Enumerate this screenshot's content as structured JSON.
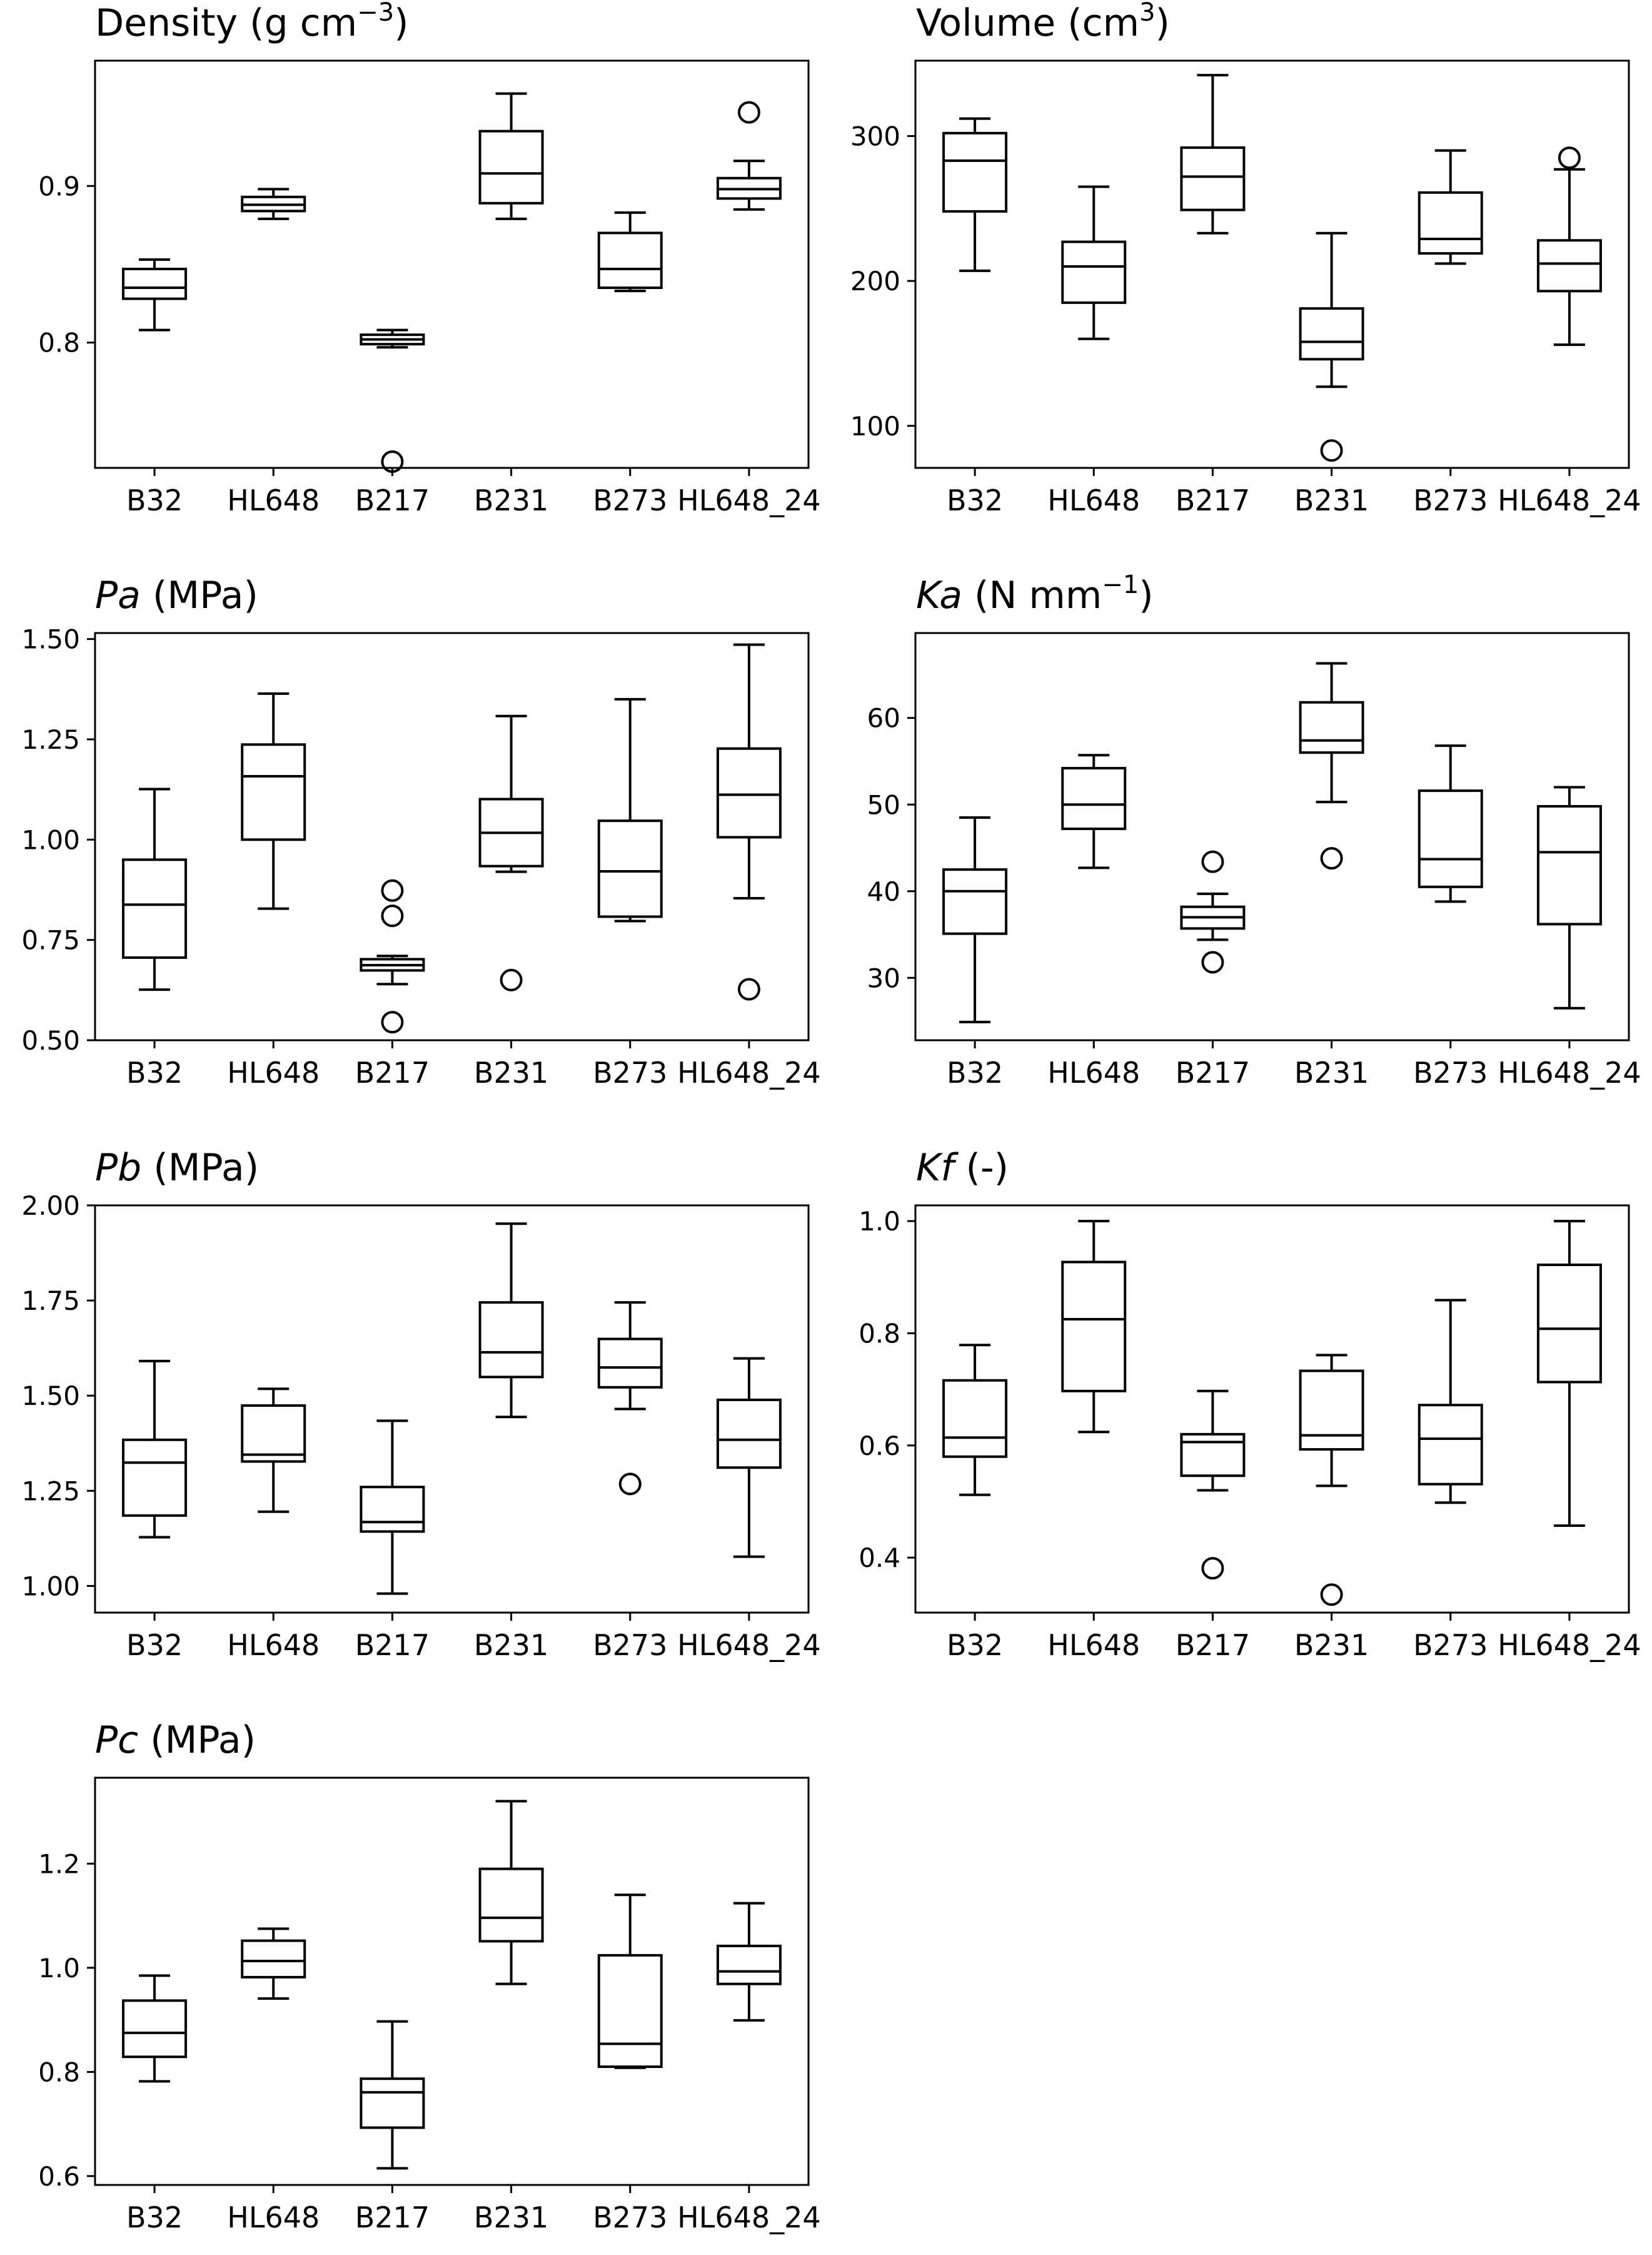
{
  "chart_data": [
    {
      "type": "box",
      "title_text": "Density (g cm",
      "title_unit_exp": "−3",
      "title_suffix": ")",
      "categories": [
        "B32",
        "HL648",
        "B217",
        "B231",
        "B273",
        "HL648_24"
      ],
      "ylim": [
        0.72,
        0.98
      ],
      "yticks": [
        0.8,
        0.9
      ],
      "ytick_labels": [
        "0.8",
        "0.9"
      ],
      "boxes": [
        {
          "whislo": 0.808,
          "q1": 0.828,
          "med": 0.835,
          "q3": 0.847,
          "whishi": 0.853,
          "fliers": []
        },
        {
          "whislo": 0.879,
          "q1": 0.884,
          "med": 0.888,
          "q3": 0.893,
          "whishi": 0.898,
          "fliers": []
        },
        {
          "whislo": 0.797,
          "q1": 0.799,
          "med": 0.802,
          "q3": 0.805,
          "whishi": 0.808,
          "fliers": [
            0.724
          ]
        },
        {
          "whislo": 0.879,
          "q1": 0.889,
          "med": 0.908,
          "q3": 0.935,
          "whishi": 0.959,
          "fliers": []
        },
        {
          "whislo": 0.833,
          "q1": 0.835,
          "med": 0.847,
          "q3": 0.87,
          "whishi": 0.883,
          "fliers": []
        },
        {
          "whislo": 0.885,
          "q1": 0.892,
          "med": 0.898,
          "q3": 0.905,
          "whishi": 0.916,
          "fliers": [
            0.947
          ]
        }
      ]
    },
    {
      "type": "box",
      "title_text": "Volume (cm",
      "title_unit_exp": "3",
      "title_suffix": ")",
      "categories": [
        "B32",
        "HL648",
        "B217",
        "B231",
        "B273",
        "HL648_24"
      ],
      "ylim": [
        71,
        352
      ],
      "yticks": [
        100,
        200,
        300
      ],
      "ytick_labels": [
        "100",
        "200",
        "300"
      ],
      "boxes": [
        {
          "whislo": 207,
          "q1": 248,
          "med": 283,
          "q3": 302,
          "whishi": 312,
          "fliers": []
        },
        {
          "whislo": 160,
          "q1": 185,
          "med": 210,
          "q3": 227,
          "whishi": 265,
          "fliers": []
        },
        {
          "whislo": 233,
          "q1": 249,
          "med": 272,
          "q3": 292,
          "whishi": 342,
          "fliers": []
        },
        {
          "whislo": 127,
          "q1": 146,
          "med": 158,
          "q3": 181,
          "whishi": 233,
          "fliers": [
            83
          ]
        },
        {
          "whislo": 212,
          "q1": 219,
          "med": 229,
          "q3": 261,
          "whishi": 290,
          "fliers": []
        },
        {
          "whislo": 156,
          "q1": 193,
          "med": 212,
          "q3": 228,
          "whishi": 277,
          "fliers": [
            285
          ]
        }
      ]
    },
    {
      "type": "box",
      "title_italic": "Pa",
      "title_text": " (MPa)",
      "categories": [
        "B32",
        "HL648",
        "B217",
        "B231",
        "B273",
        "HL648_24"
      ],
      "ylim": [
        0.5,
        1.515
      ],
      "yticks": [
        0.5,
        0.75,
        1.0,
        1.25,
        1.5
      ],
      "ytick_labels": [
        "0.50",
        "0.75",
        "1.00",
        "1.25",
        "1.50"
      ],
      "boxes": [
        {
          "whislo": 0.626,
          "q1": 0.706,
          "med": 0.838,
          "q3": 0.95,
          "whishi": 1.126,
          "fliers": []
        },
        {
          "whislo": 0.828,
          "q1": 1.0,
          "med": 1.158,
          "q3": 1.237,
          "whishi": 1.364,
          "fliers": []
        },
        {
          "whislo": 0.64,
          "q1": 0.674,
          "med": 0.687,
          "q3": 0.702,
          "whishi": 0.71,
          "fliers": [
            0.873,
            0.81,
            0.545
          ]
        },
        {
          "whislo": 0.92,
          "q1": 0.934,
          "med": 1.017,
          "q3": 1.101,
          "whishi": 1.308,
          "fliers": [
            0.65
          ]
        },
        {
          "whislo": 0.797,
          "q1": 0.808,
          "med": 0.921,
          "q3": 1.047,
          "whishi": 1.35,
          "fliers": []
        },
        {
          "whislo": 0.854,
          "q1": 1.006,
          "med": 1.112,
          "q3": 1.227,
          "whishi": 1.486,
          "fliers": [
            0.627
          ]
        }
      ]
    },
    {
      "type": "box",
      "title_italic": "Ka",
      "title_text": " (N mm",
      "title_unit_exp": "−1",
      "title_suffix": ")",
      "categories": [
        "B32",
        "HL648",
        "B217",
        "B231",
        "B273",
        "HL648_24"
      ],
      "ylim": [
        22.8,
        69.8
      ],
      "yticks": [
        30,
        40,
        50,
        60
      ],
      "ytick_labels": [
        "30",
        "40",
        "50",
        "60"
      ],
      "boxes": [
        {
          "whislo": 24.9,
          "q1": 35.1,
          "med": 40.0,
          "q3": 42.5,
          "whishi": 48.5,
          "fliers": []
        },
        {
          "whislo": 42.7,
          "q1": 47.2,
          "med": 50.0,
          "q3": 54.2,
          "whishi": 55.7,
          "fliers": []
        },
        {
          "whislo": 34.4,
          "q1": 35.7,
          "med": 37.0,
          "q3": 38.2,
          "whishi": 39.7,
          "fliers": [
            43.4,
            31.8
          ]
        },
        {
          "whislo": 50.3,
          "q1": 56.0,
          "med": 57.4,
          "q3": 61.8,
          "whishi": 66.3,
          "fliers": [
            43.8
          ]
        },
        {
          "whislo": 38.8,
          "q1": 40.5,
          "med": 43.7,
          "q3": 51.6,
          "whishi": 56.8,
          "fliers": []
        },
        {
          "whislo": 26.5,
          "q1": 36.2,
          "med": 44.5,
          "q3": 49.8,
          "whishi": 52.0,
          "fliers": []
        }
      ]
    },
    {
      "type": "box",
      "title_italic": "Pb",
      "title_text": " (MPa)",
      "categories": [
        "B32",
        "HL648",
        "B217",
        "B231",
        "B273",
        "HL648_24"
      ],
      "ylim": [
        0.93,
        2.0
      ],
      "yticks": [
        1.0,
        1.25,
        1.5,
        1.75,
        2.0
      ],
      "ytick_labels": [
        "1.00",
        "1.25",
        "1.50",
        "1.75",
        "2.00"
      ],
      "boxes": [
        {
          "whislo": 1.128,
          "q1": 1.185,
          "med": 1.324,
          "q3": 1.384,
          "whishi": 1.591,
          "fliers": []
        },
        {
          "whislo": 1.195,
          "q1": 1.327,
          "med": 1.345,
          "q3": 1.474,
          "whishi": 1.518,
          "fliers": []
        },
        {
          "whislo": 0.98,
          "q1": 1.143,
          "med": 1.168,
          "q3": 1.26,
          "whishi": 1.434,
          "fliers": []
        },
        {
          "whislo": 1.444,
          "q1": 1.549,
          "med": 1.614,
          "q3": 1.745,
          "whishi": 1.952,
          "fliers": []
        },
        {
          "whislo": 1.465,
          "q1": 1.522,
          "med": 1.574,
          "q3": 1.649,
          "whishi": 1.745,
          "fliers": [
            1.268
          ]
        },
        {
          "whislo": 1.077,
          "q1": 1.311,
          "med": 1.384,
          "q3": 1.489,
          "whishi": 1.598,
          "fliers": []
        }
      ]
    },
    {
      "type": "box",
      "title_italic": "Kf",
      "title_text": " (-)",
      "categories": [
        "B32",
        "HL648",
        "B217",
        "B231",
        "B273",
        "HL648_24"
      ],
      "ylim": [
        0.302,
        1.028
      ],
      "yticks": [
        0.4,
        0.6,
        0.8,
        1.0
      ],
      "ytick_labels": [
        "0.4",
        "0.6",
        "0.8",
        "1.0"
      ],
      "boxes": [
        {
          "whislo": 0.512,
          "q1": 0.58,
          "med": 0.614,
          "q3": 0.716,
          "whishi": 0.779,
          "fliers": []
        },
        {
          "whislo": 0.624,
          "q1": 0.697,
          "med": 0.825,
          "q3": 0.927,
          "whishi": 1.0,
          "fliers": []
        },
        {
          "whislo": 0.52,
          "q1": 0.546,
          "med": 0.606,
          "q3": 0.62,
          "whishi": 0.697,
          "fliers": [
            0.381
          ]
        },
        {
          "whislo": 0.528,
          "q1": 0.593,
          "med": 0.618,
          "q3": 0.733,
          "whishi": 0.761,
          "fliers": [
            0.334
          ]
        },
        {
          "whislo": 0.498,
          "q1": 0.531,
          "med": 0.612,
          "q3": 0.672,
          "whishi": 0.859,
          "fliers": []
        },
        {
          "whislo": 0.457,
          "q1": 0.713,
          "med": 0.808,
          "q3": 0.922,
          "whishi": 1.0,
          "fliers": []
        }
      ]
    },
    {
      "type": "box",
      "title_italic": "Pc",
      "title_text": " (MPa)",
      "categories": [
        "B32",
        "HL648",
        "B217",
        "B231",
        "B273",
        "HL648_24"
      ],
      "ylim": [
        0.583,
        1.365
      ],
      "yticks": [
        0.6,
        0.8,
        1.0,
        1.2
      ],
      "ytick_labels": [
        "0.6",
        "0.8",
        "1.0",
        "1.2"
      ],
      "boxes": [
        {
          "whislo": 0.782,
          "q1": 0.829,
          "med": 0.875,
          "q3": 0.937,
          "whishi": 0.985,
          "fliers": []
        },
        {
          "whislo": 0.941,
          "q1": 0.982,
          "med": 1.013,
          "q3": 1.052,
          "whishi": 1.075,
          "fliers": []
        },
        {
          "whislo": 0.615,
          "q1": 0.693,
          "med": 0.761,
          "q3": 0.787,
          "whishi": 0.897,
          "fliers": []
        },
        {
          "whislo": 0.969,
          "q1": 1.051,
          "med": 1.096,
          "q3": 1.19,
          "whishi": 1.32,
          "fliers": []
        },
        {
          "whislo": 0.808,
          "q1": 0.81,
          "med": 0.854,
          "q3": 1.024,
          "whishi": 1.14,
          "fliers": []
        },
        {
          "whislo": 0.899,
          "q1": 0.969,
          "med": 0.993,
          "q3": 1.042,
          "whishi": 1.124,
          "fliers": []
        }
      ]
    }
  ]
}
